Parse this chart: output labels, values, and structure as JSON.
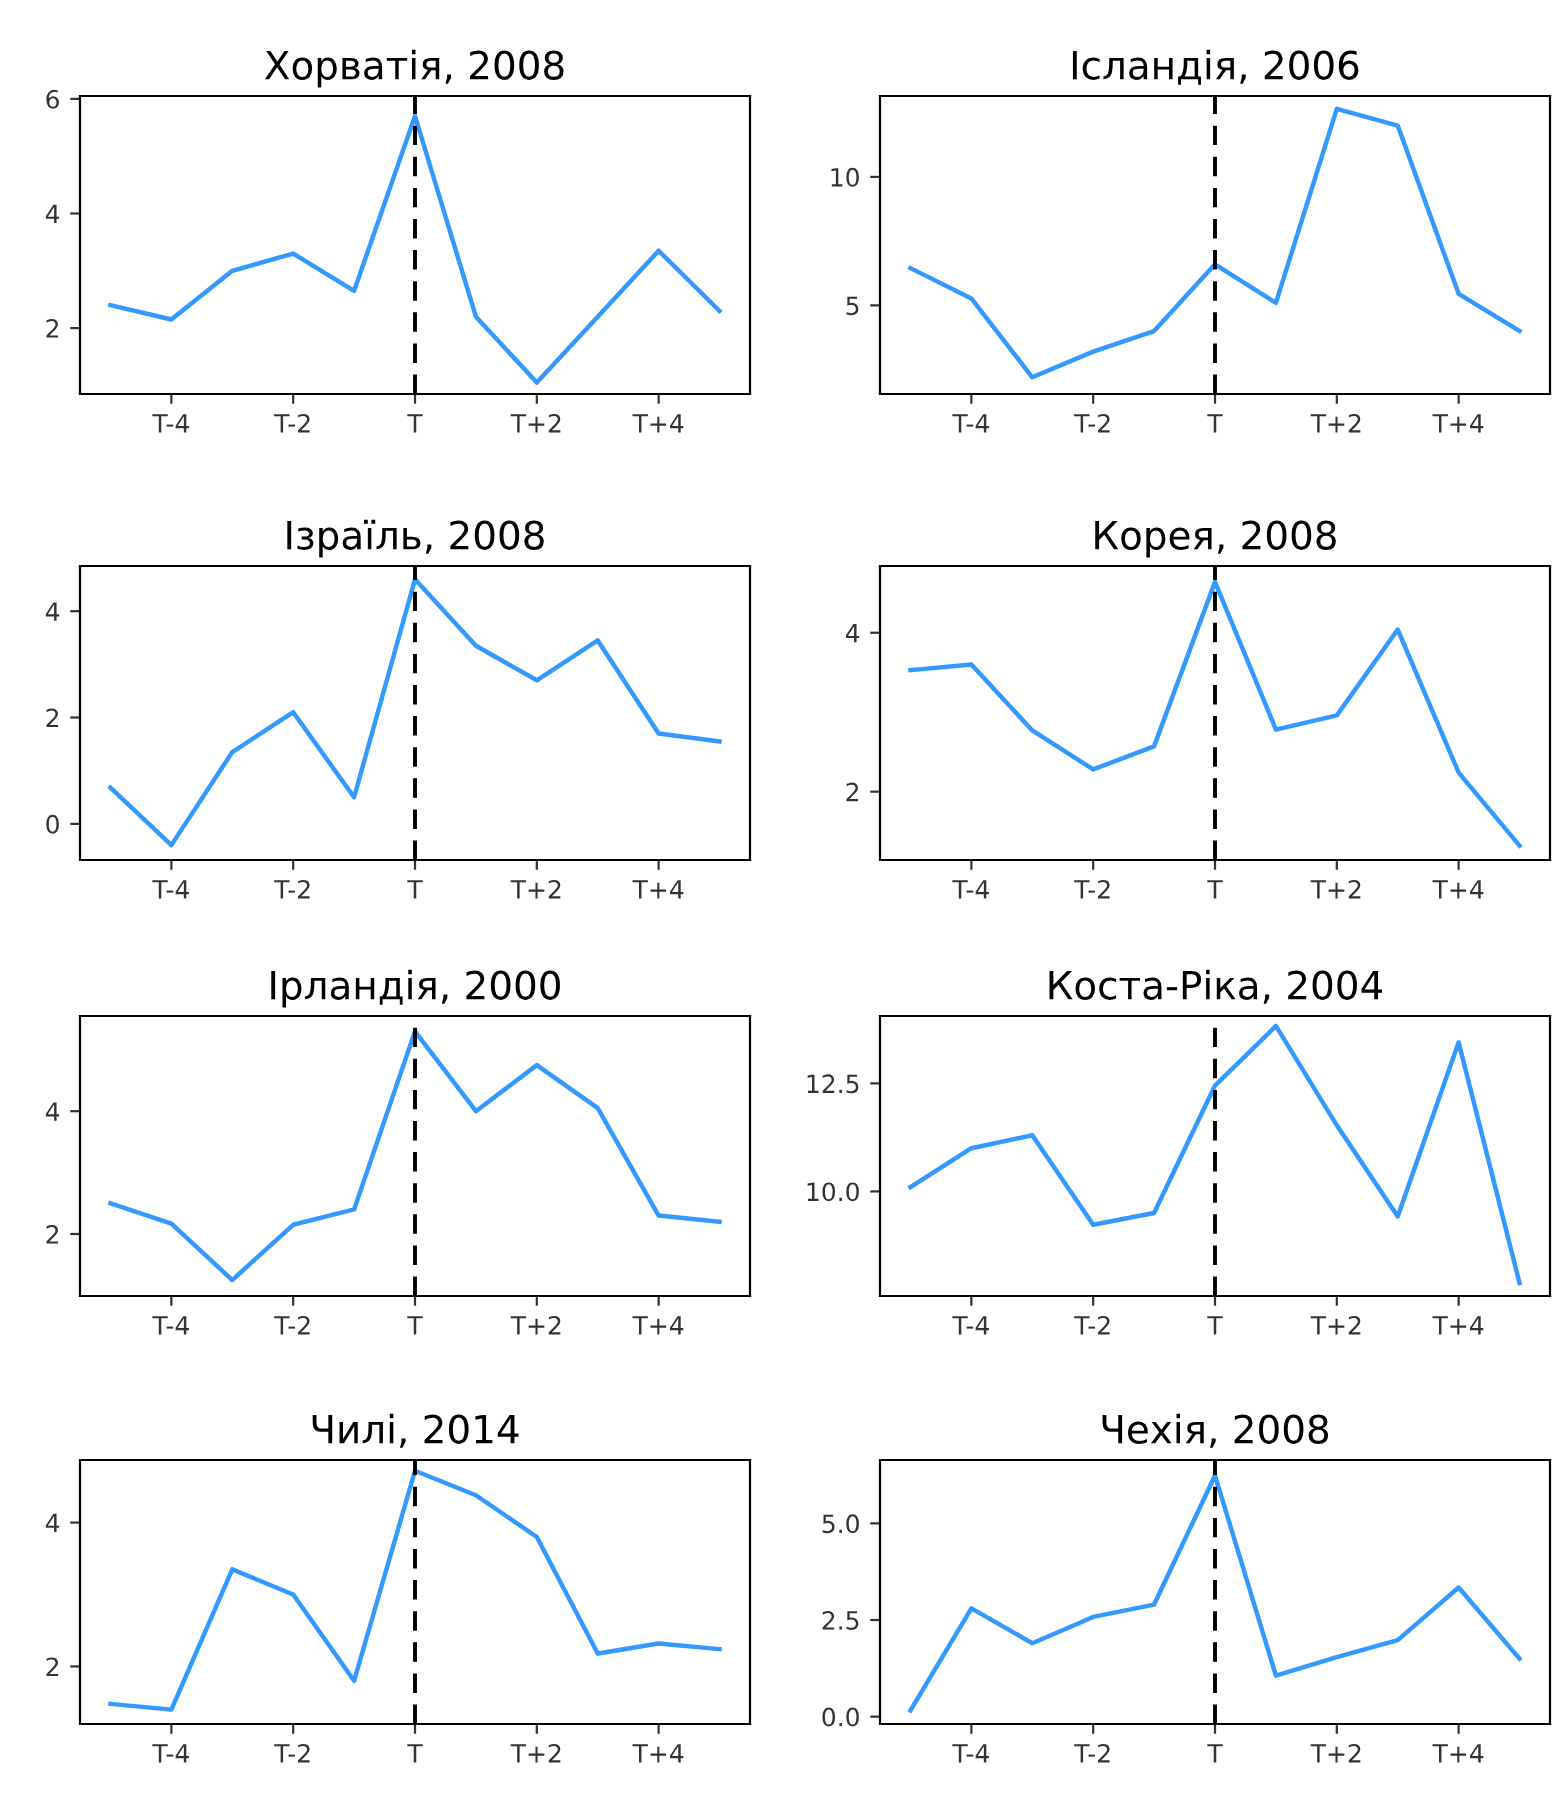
{
  "chart_data": [
    {
      "type": "line",
      "title": "Хорватія, 2008",
      "categories": [
        null,
        "T-4",
        null,
        "T-2",
        null,
        "T",
        null,
        "T+2",
        null,
        "T+4",
        null
      ],
      "series": [
        {
          "color": "#3399ff",
          "values": [
            2.4,
            2.15,
            3.0,
            3.3,
            2.65,
            5.7,
            2.2,
            1.05,
            2.2,
            3.35,
            2.3
          ]
        }
      ],
      "ylim": [
        0.85,
        6.05
      ],
      "yticks": [
        2,
        4,
        6
      ],
      "ref_lines": [
        {
          "axis": "x",
          "value": "T",
          "color": "#000000",
          "line_style": "dashed"
        }
      ]
    },
    {
      "type": "line",
      "title": "Ісландія, 2006",
      "categories": [
        null,
        "T-4",
        null,
        "T-2",
        null,
        "T",
        null,
        "T+2",
        null,
        "T+4",
        null
      ],
      "series": [
        {
          "color": "#3399ff",
          "values": [
            6.45,
            5.27,
            2.2,
            3.2,
            4.0,
            6.6,
            5.1,
            12.65,
            12.0,
            5.45,
            4.0
          ]
        }
      ],
      "ylim": [
        1.55,
        13.15
      ],
      "yticks": [
        5,
        10
      ],
      "ref_lines": [
        {
          "axis": "x",
          "value": "T",
          "color": "#000000",
          "line_style": "dashed"
        }
      ]
    },
    {
      "type": "line",
      "title": "Ізраїль, 2008",
      "categories": [
        null,
        "T-4",
        null,
        "T-2",
        null,
        "T",
        null,
        "T+2",
        null,
        "T+4",
        null
      ],
      "series": [
        {
          "color": "#3399ff",
          "values": [
            0.68,
            -0.4,
            1.35,
            2.1,
            0.5,
            4.6,
            3.35,
            2.7,
            3.45,
            1.7,
            1.55
          ]
        }
      ],
      "ylim": [
        -0.68,
        4.85
      ],
      "yticks": [
        0,
        2,
        4
      ],
      "ref_lines": [
        {
          "axis": "x",
          "value": "T",
          "color": "#000000",
          "line_style": "dashed"
        }
      ]
    },
    {
      "type": "line",
      "title": "Корея, 2008",
      "categories": [
        null,
        "T-4",
        null,
        "T-2",
        null,
        "T",
        null,
        "T+2",
        null,
        "T+4",
        null
      ],
      "series": [
        {
          "color": "#3399ff",
          "values": [
            3.53,
            3.6,
            2.77,
            2.28,
            2.57,
            4.64,
            2.78,
            2.96,
            4.04,
            2.24,
            1.32
          ]
        }
      ],
      "ylim": [
        1.14,
        4.84
      ],
      "yticks": [
        2,
        4
      ],
      "ref_lines": [
        {
          "axis": "x",
          "value": "T",
          "color": "#000000",
          "line_style": "dashed"
        }
      ]
    },
    {
      "type": "line",
      "title": "Ірландія, 2000",
      "categories": [
        null,
        "T-4",
        null,
        "T-2",
        null,
        "T",
        null,
        "T+2",
        null,
        "T+4",
        null
      ],
      "series": [
        {
          "color": "#3399ff",
          "values": [
            2.5,
            2.17,
            1.25,
            2.15,
            2.4,
            5.3,
            4.0,
            4.75,
            4.05,
            2.3,
            2.2
          ]
        }
      ],
      "ylim": [
        0.99,
        5.55
      ],
      "yticks": [
        2,
        4
      ],
      "ref_lines": [
        {
          "axis": "x",
          "value": "T",
          "color": "#000000",
          "line_style": "dashed"
        }
      ]
    },
    {
      "type": "line",
      "title": "Коста-Ріка, 2004",
      "categories": [
        null,
        "T-4",
        null,
        "T-2",
        null,
        "T",
        null,
        "T+2",
        null,
        "T+4",
        null
      ],
      "series": [
        {
          "color": "#3399ff",
          "values": [
            10.1,
            11.0,
            11.3,
            9.23,
            9.5,
            12.45,
            13.83,
            11.53,
            9.42,
            13.45,
            7.88
          ]
        }
      ],
      "ylim": [
        7.58,
        14.06
      ],
      "yticks": [
        {
          "value": 10,
          "label": "10.0"
        },
        12.5
      ],
      "ref_lines": [
        {
          "axis": "x",
          "value": "T",
          "color": "#000000",
          "line_style": "dashed"
        }
      ]
    },
    {
      "type": "line",
      "title": "Чилі, 2014",
      "categories": [
        null,
        "T-4",
        null,
        "T-2",
        null,
        "T",
        null,
        "T+2",
        null,
        "T+4",
        null
      ],
      "series": [
        {
          "color": "#3399ff",
          "values": [
            1.48,
            1.4,
            3.35,
            3.0,
            1.8,
            4.72,
            4.38,
            3.8,
            2.18,
            2.32,
            2.24
          ]
        }
      ],
      "ylim": [
        1.2,
        4.87
      ],
      "yticks": [
        2,
        4
      ],
      "ref_lines": [
        {
          "axis": "x",
          "value": "T",
          "color": "#000000",
          "line_style": "dashed"
        }
      ]
    },
    {
      "type": "line",
      "title": "Чехія, 2008",
      "categories": [
        null,
        "T-4",
        null,
        "T-2",
        null,
        "T",
        null,
        "T+2",
        null,
        "T+4",
        null
      ],
      "series": [
        {
          "color": "#3399ff",
          "values": [
            0.16,
            2.8,
            1.9,
            2.58,
            2.9,
            6.24,
            1.06,
            1.54,
            1.98,
            3.34,
            1.5
          ]
        }
      ],
      "ylim": [
        -0.19,
        6.64
      ],
      "yticks": [
        {
          "value": 0,
          "label": "0.0"
        },
        {
          "value": 2.5,
          "label": "2.5"
        },
        {
          "value": 5,
          "label": "5.0"
        }
      ],
      "ref_lines": [
        {
          "axis": "x",
          "value": "T",
          "color": "#000000",
          "line_style": "dashed"
        }
      ]
    }
  ]
}
